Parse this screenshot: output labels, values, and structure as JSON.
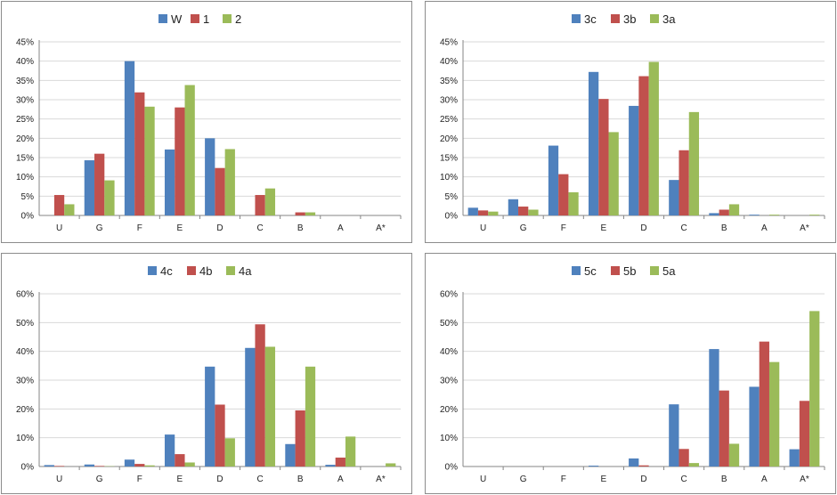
{
  "colors": {
    "series1": "#4f81bd",
    "series2": "#c0504d",
    "series3": "#9bbb59",
    "grid": "#d9d9d9",
    "axis": "#868686"
  },
  "chart_data": [
    {
      "type": "bar",
      "categories": [
        "U",
        "G",
        "F",
        "E",
        "D",
        "C",
        "B",
        "A",
        "A*"
      ],
      "ylim": [
        0,
        45
      ],
      "yticks": [
        "0%",
        "5%",
        "10%",
        "15%",
        "20%",
        "25%",
        "30%",
        "35%",
        "40%",
        "45%"
      ],
      "ytick_values": [
        0,
        5,
        10,
        15,
        20,
        25,
        30,
        35,
        40,
        45
      ],
      "legend": "top",
      "grid": true,
      "series": [
        {
          "name": "W",
          "values": [
            0,
            14.3,
            40,
            17.1,
            20,
            0,
            0,
            0,
            0
          ]
        },
        {
          "name": "1",
          "values": [
            5.3,
            16,
            31.9,
            28,
            12.3,
            5.3,
            0.8,
            0,
            0
          ]
        },
        {
          "name": "2",
          "values": [
            2.9,
            9.1,
            28.2,
            33.8,
            17.2,
            7,
            0.8,
            0,
            0
          ]
        }
      ]
    },
    {
      "type": "bar",
      "categories": [
        "U",
        "G",
        "F",
        "E",
        "D",
        "C",
        "B",
        "A",
        "A*"
      ],
      "ylim": [
        0,
        45
      ],
      "yticks": [
        "0%",
        "5%",
        "10%",
        "15%",
        "20%",
        "25%",
        "30%",
        "35%",
        "40%",
        "45%"
      ],
      "ytick_values": [
        0,
        5,
        10,
        15,
        20,
        25,
        30,
        35,
        40,
        45
      ],
      "legend": "top",
      "grid": true,
      "series": [
        {
          "name": "3c",
          "values": [
            2.0,
            4.2,
            18.1,
            37.2,
            28.4,
            9.2,
            0.6,
            0.2,
            0
          ]
        },
        {
          "name": "3b",
          "values": [
            1.3,
            2.3,
            10.7,
            30.2,
            36.1,
            16.9,
            1.5,
            0,
            0
          ]
        },
        {
          "name": "3a",
          "values": [
            1.0,
            1.5,
            6.0,
            21.6,
            39.8,
            26.8,
            2.9,
            0.2,
            0.2
          ]
        }
      ]
    },
    {
      "type": "bar",
      "categories": [
        "U",
        "G",
        "F",
        "E",
        "D",
        "C",
        "B",
        "A",
        "A*"
      ],
      "ylim": [
        0,
        60
      ],
      "yticks": [
        "0%",
        "10%",
        "20%",
        "30%",
        "40%",
        "50%",
        "60%"
      ],
      "ytick_values": [
        0,
        10,
        20,
        30,
        40,
        50,
        60
      ],
      "legend": "top",
      "grid": true,
      "series": [
        {
          "name": "4c",
          "values": [
            0.5,
            0.7,
            2.4,
            11.1,
            34.7,
            41.2,
            7.8,
            0.6,
            0
          ]
        },
        {
          "name": "4b",
          "values": [
            0.2,
            0.2,
            0.9,
            4.3,
            21.5,
            49.4,
            19.5,
            3.1,
            0
          ]
        },
        {
          "name": "4a",
          "values": [
            0,
            0.1,
            0.4,
            1.4,
            9.8,
            41.6,
            34.7,
            10.4,
            1.1
          ]
        }
      ]
    },
    {
      "type": "bar",
      "categories": [
        "U",
        "G",
        "F",
        "E",
        "D",
        "C",
        "B",
        "A",
        "A*"
      ],
      "ylim": [
        0,
        60
      ],
      "yticks": [
        "0%",
        "10%",
        "20%",
        "30%",
        "40%",
        "50%",
        "60%"
      ],
      "ytick_values": [
        0,
        10,
        20,
        30,
        40,
        50,
        60
      ],
      "legend": "top",
      "grid": true,
      "series": [
        {
          "name": "5c",
          "values": [
            0,
            0,
            0,
            0.3,
            2.8,
            21.6,
            40.8,
            27.7,
            6.0
          ]
        },
        {
          "name": "5b",
          "values": [
            0,
            0,
            0,
            0,
            0.4,
            6.1,
            26.4,
            43.4,
            22.8
          ]
        },
        {
          "name": "5a",
          "values": [
            0,
            0,
            0,
            0,
            0,
            1.2,
            7.9,
            36.3,
            54.0
          ]
        }
      ]
    }
  ]
}
